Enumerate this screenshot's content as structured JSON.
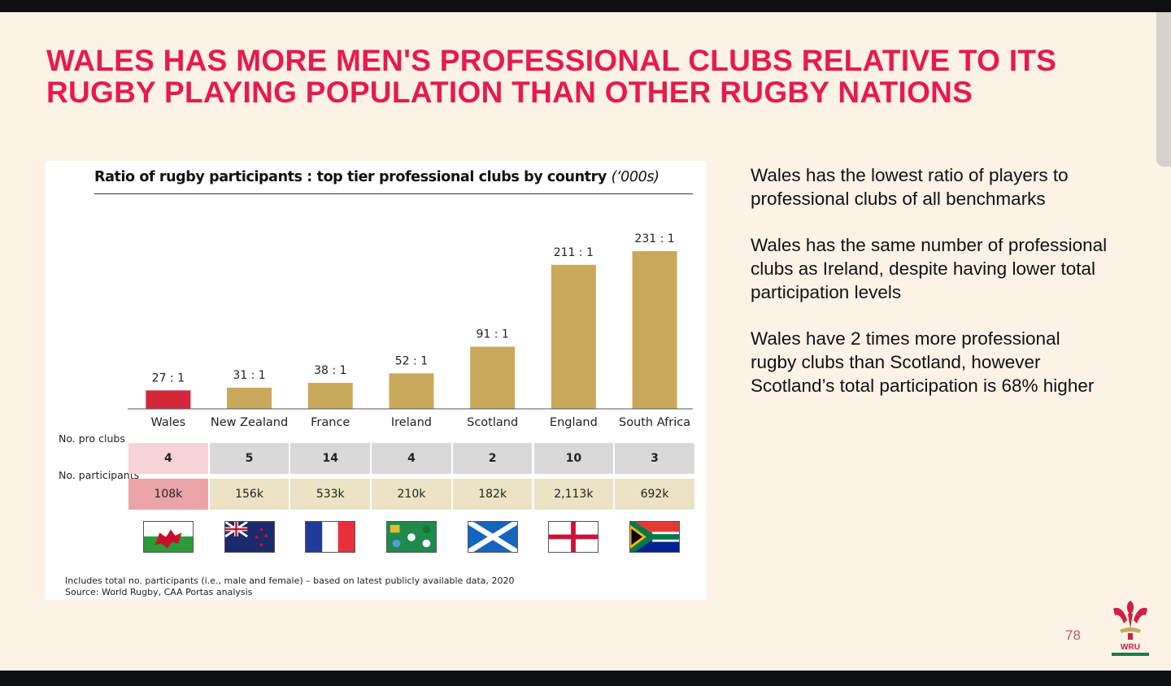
{
  "title": "WALES HAS MORE MEN'S PROFESSIONAL CLUBS RELATIVE TO ITS RUGBY PLAYING POPULATION THAN OTHER RUGBY NATIONS",
  "chart_data": {
    "type": "bar",
    "title": "Ratio of rugby participants : top tier professional clubs by country",
    "title_suffix": "(‘000s)",
    "categories": [
      "Wales",
      "New Zealand",
      "France",
      "Ireland",
      "Scotland",
      "England",
      "South Africa"
    ],
    "values": [
      27,
      31,
      38,
      52,
      91,
      211,
      231
    ],
    "data_labels": [
      "27 : 1",
      "31 : 1",
      "38 : 1",
      "52 : 1",
      "91 : 1",
      "211 : 1",
      "231 : 1"
    ],
    "highlight": "Wales",
    "colors": {
      "highlight": "#d3283a",
      "default": "#c9a95c"
    },
    "ylim": [
      0,
      231
    ],
    "grid": false
  },
  "table": {
    "clubs_label": "No. pro clubs",
    "participants_label": "No. participants",
    "clubs": [
      "4",
      "5",
      "14",
      "4",
      "2",
      "10",
      "3"
    ],
    "participants": [
      "108k",
      "156k",
      "533k",
      "210k",
      "182k",
      "2,113k",
      "692k"
    ]
  },
  "flags": [
    "wales-flag",
    "new-zealand-flag",
    "france-flag",
    "ireland-rugby-flag",
    "scotland-flag",
    "england-flag",
    "south-africa-flag"
  ],
  "notes": {
    "line1": "Includes total no. participants (i.e., male and female) – based on latest publicly available data, 2020",
    "line2": "Source: World Rugby, CAA Portas analysis"
  },
  "side": [
    "Wales has the lowest ratio of players to professional clubs of all benchmarks",
    "Wales has the same number of professional clubs as Ireland, despite having lower total participation levels",
    "Wales have 2 times more professional rugby clubs than Scotland, however Scotland’s total participation is 68% higher"
  ],
  "page_number": "78",
  "logo_text": "WRU"
}
